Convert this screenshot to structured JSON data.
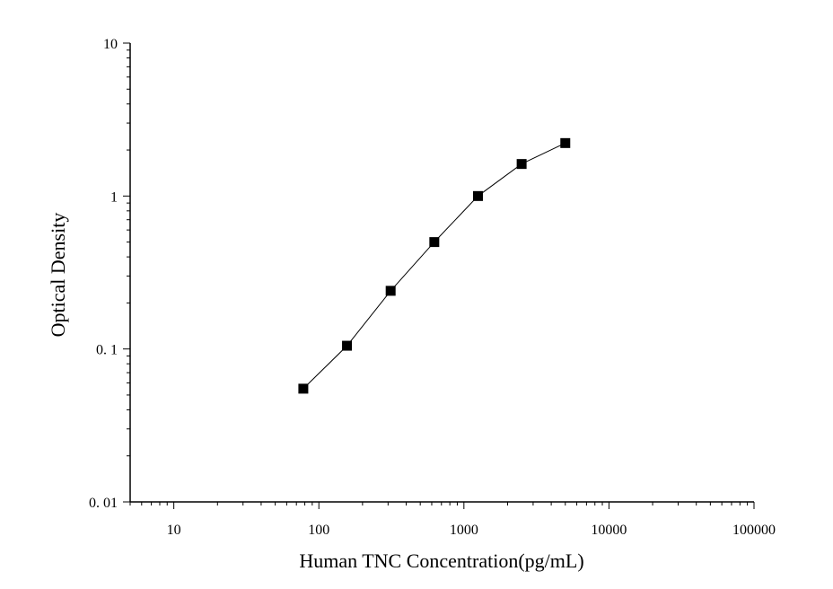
{
  "chart_data": {
    "type": "scatter",
    "title": "",
    "xlabel": "Human TNC Concentration(pg/mL)",
    "ylabel": "Optical Density",
    "xscale": "log",
    "yscale": "log",
    "xlim": [
      5,
      100000
    ],
    "ylim": [
      0.01,
      10
    ],
    "x_ticks": [
      10,
      100,
      1000,
      10000,
      100000
    ],
    "x_tick_labels": [
      "10",
      "100",
      "1000",
      "10000",
      "100000"
    ],
    "y_ticks": [
      0.01,
      0.1,
      1,
      10
    ],
    "y_tick_labels": [
      "0. 01",
      "0. 1",
      "1",
      "10"
    ],
    "grid": false,
    "legend": "none",
    "marker": "square",
    "line_style": "connected",
    "color": "#000000",
    "series": [
      {
        "x": [
          78.125,
          156.25,
          312.5,
          625,
          1250,
          2500,
          5000
        ],
        "y": [
          0.055,
          0.105,
          0.24,
          0.5,
          1.0,
          1.62,
          2.22
        ]
      }
    ]
  }
}
